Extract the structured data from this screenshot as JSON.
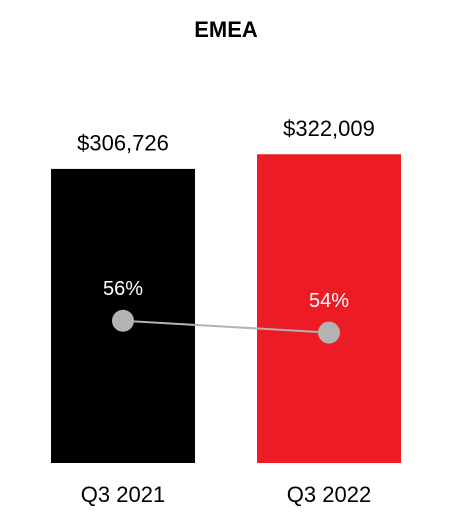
{
  "chart_data": {
    "type": "bar",
    "title": "EMEA",
    "categories": [
      "Q3 2021",
      "Q3 2022"
    ],
    "ylim": [
      0,
      340000
    ],
    "y2lim": [
      32,
      87
    ],
    "series": [
      {
        "type": "bar",
        "colors": [
          "#000000",
          "#ed1c24"
        ],
        "values": [
          306726,
          322009
        ],
        "value_labels": [
          "$306,726",
          "$322,009"
        ]
      },
      {
        "type": "line",
        "axis": "y2",
        "color": "#b3b3b3",
        "values": [
          56,
          54
        ],
        "value_labels": [
          "56%",
          "54%"
        ]
      }
    ]
  }
}
